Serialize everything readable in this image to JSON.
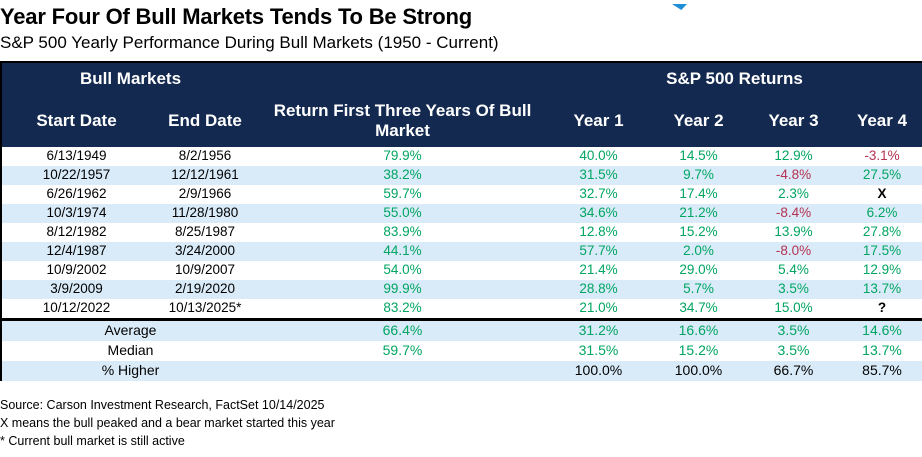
{
  "title": "Year Four Of Bull Markets Tends To Be Strong",
  "subtitle": "S&P 500 Yearly Performance During Bull Markets (1950 - Current)",
  "logo": {
    "icon": "carson-logo-fragment",
    "color": "#1e8fd5"
  },
  "colors": {
    "header_bg": "#13294f",
    "row_alt": "#d9ebf8",
    "positive": "#00a562",
    "negative": "#b43150",
    "special": "#000000"
  },
  "chart_data": {
    "type": "table",
    "group_headers": [
      {
        "label": "Bull Markets",
        "span": 2
      },
      {
        "label": "",
        "span": 1
      },
      {
        "label": "S&P 500 Returns",
        "span": 4
      }
    ],
    "columns": [
      "Start Date",
      "End Date",
      "Return First Three Years Of Bull Market",
      "Year 1",
      "Year 2",
      "Year 3",
      "Year 4"
    ],
    "rows": [
      [
        "6/13/1949",
        "8/2/1956",
        "79.9%",
        "40.0%",
        "14.5%",
        "12.9%",
        "-3.1%"
      ],
      [
        "10/22/1957",
        "12/12/1961",
        "38.2%",
        "31.5%",
        "9.7%",
        "-4.8%",
        "27.5%"
      ],
      [
        "6/26/1962",
        "2/9/1966",
        "59.7%",
        "32.7%",
        "17.4%",
        "2.3%",
        "X"
      ],
      [
        "10/3/1974",
        "11/28/1980",
        "55.0%",
        "34.6%",
        "21.2%",
        "-8.4%",
        "6.2%"
      ],
      [
        "8/12/1982",
        "8/25/1987",
        "83.9%",
        "12.8%",
        "15.2%",
        "13.9%",
        "27.8%"
      ],
      [
        "12/4/1987",
        "3/24/2000",
        "44.1%",
        "57.7%",
        "2.0%",
        "-8.0%",
        "17.5%"
      ],
      [
        "10/9/2002",
        "10/9/2007",
        "54.0%",
        "21.4%",
        "29.0%",
        "5.4%",
        "12.9%"
      ],
      [
        "3/9/2009",
        "2/19/2020",
        "99.9%",
        "28.8%",
        "5.7%",
        "3.5%",
        "13.7%"
      ],
      [
        "10/12/2022",
        "10/13/2025*",
        "83.2%",
        "21.0%",
        "34.7%",
        "15.0%",
        "?"
      ]
    ],
    "summary_rows": [
      {
        "label": "Average",
        "values": [
          "66.4%",
          "31.2%",
          "16.6%",
          "3.5%",
          "14.6%"
        ],
        "plain": false
      },
      {
        "label": "Median",
        "values": [
          "59.7%",
          "31.5%",
          "15.2%",
          "3.5%",
          "13.7%"
        ],
        "plain": false
      },
      {
        "label": "% Higher",
        "values": [
          "",
          "100.0%",
          "100.0%",
          "66.7%",
          "85.7%"
        ],
        "plain": true
      }
    ]
  },
  "footnotes": [
    "Source: Carson Investment Research, FactSet 10/14/2025",
    "X means the bull peaked and a bear market started this year",
    "* Current bull market is still active"
  ]
}
